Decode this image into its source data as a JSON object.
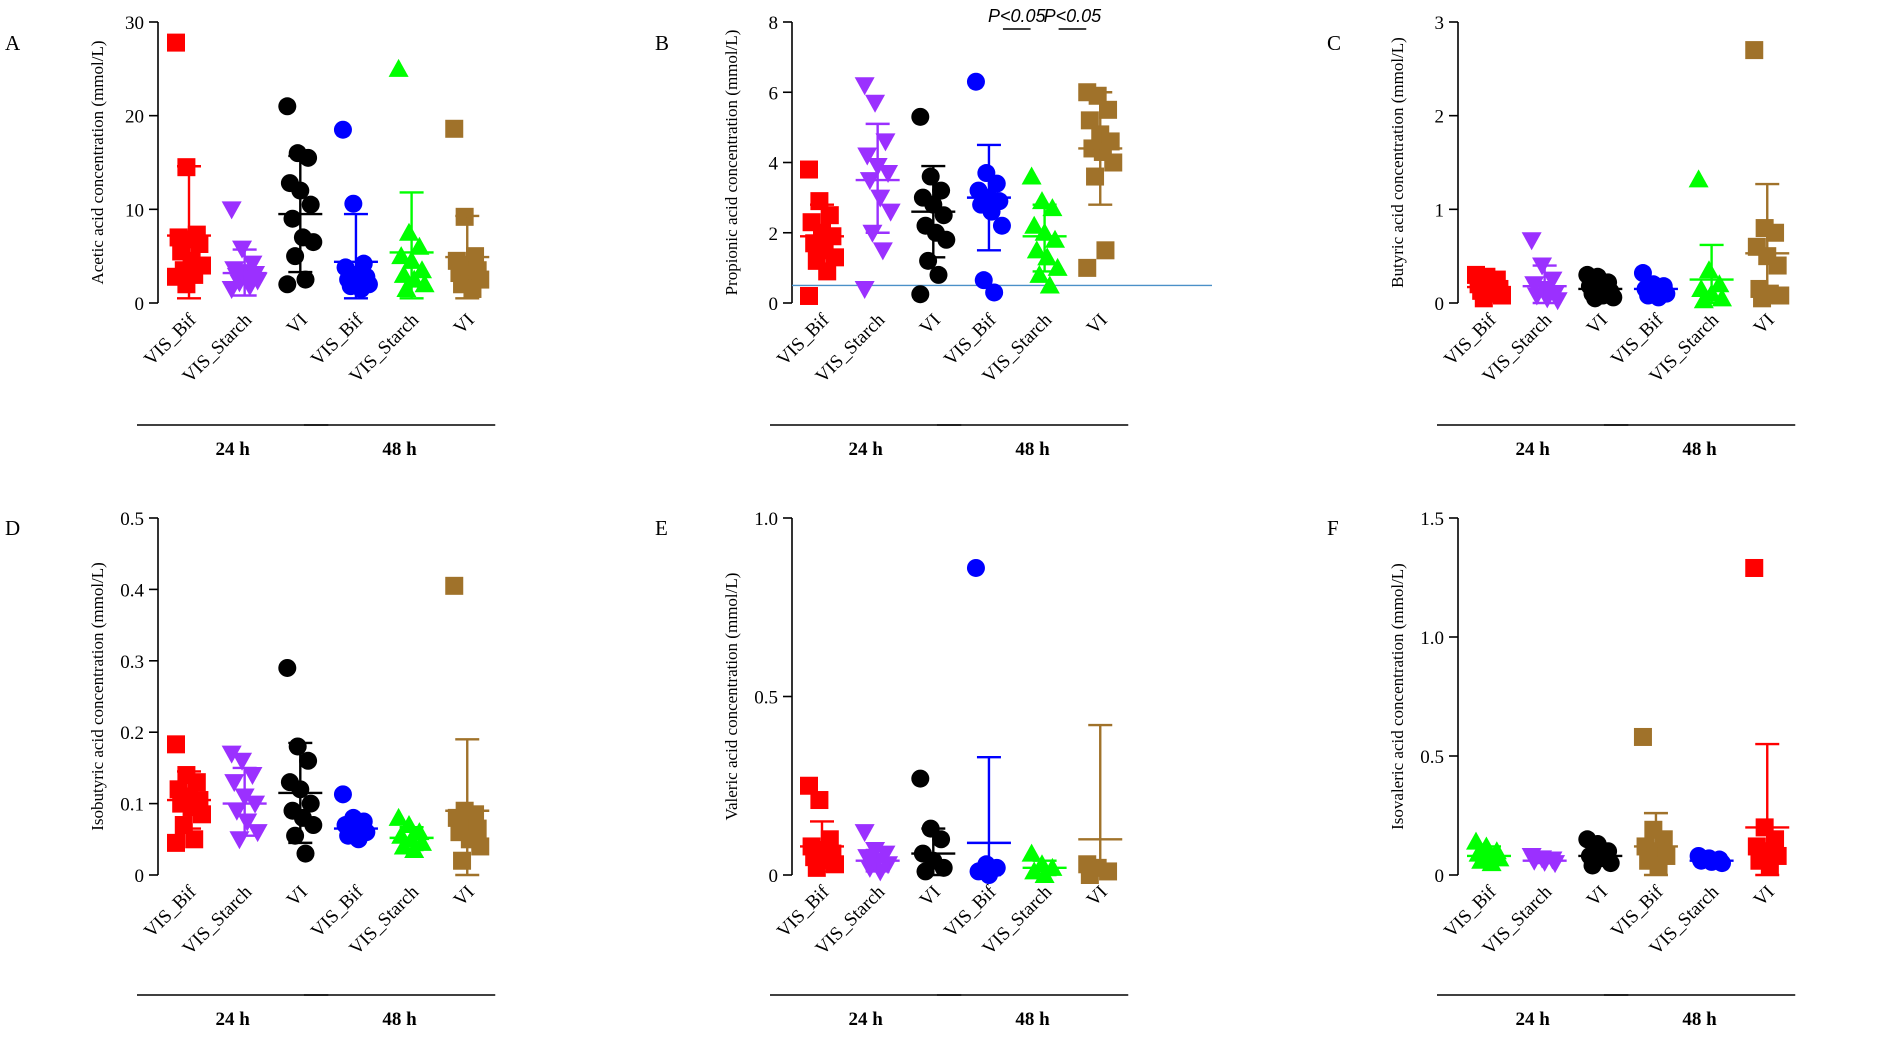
{
  "chart_data": [
    {
      "type": "scatter",
      "panel": "A",
      "ylabel": "Acetic  acid  concentration  (mmol/L)",
      "ylim": [
        0,
        30
      ],
      "yticks": [
        0,
        10,
        20,
        30
      ],
      "ytick_labels": [
        "0",
        "10",
        "20",
        "30"
      ],
      "categories": [
        "VIS_Bif",
        "VIS_Starch",
        "VI",
        "VIS_Bif",
        "VIS_Starch",
        "VI"
      ],
      "groups": [
        {
          "label": "24 h",
          "span": [
            0,
            2
          ]
        },
        {
          "label": "48 h",
          "span": [
            3,
            5
          ]
        }
      ],
      "series": [
        {
          "category": "VIS_Bif",
          "color": "#ff0000",
          "marker": "square",
          "mean": 7.2,
          "sd_low": 0.5,
          "sd_high": 14.6,
          "points": [
            27.8,
            14.5,
            7.3,
            7.0,
            6.8,
            6.3,
            5.5,
            4.5,
            4.0,
            3.5,
            3.0,
            2.8,
            2.0
          ]
        },
        {
          "category": "VIS_Starch",
          "color": "#9b30ff",
          "marker": "triangle-down",
          "mean": 3.2,
          "sd_low": 0.8,
          "sd_high": 5.7,
          "points": [
            10.0,
            5.8,
            4.2,
            3.6,
            3.3,
            3.1,
            2.9,
            2.6,
            2.4,
            2.2,
            1.8,
            1.5
          ]
        },
        {
          "category": "VI",
          "color": "#000000",
          "marker": "circle",
          "mean": 9.5,
          "sd_low": 3.3,
          "sd_high": 15.7,
          "points": [
            21.0,
            16.0,
            15.5,
            12.8,
            12.0,
            10.5,
            9.0,
            7.0,
            6.5,
            5.0,
            2.5,
            2.0
          ]
        },
        {
          "category": "VIS_Bif",
          "color": "#0000ff",
          "marker": "circle",
          "mean": 4.4,
          "sd_low": 0.5,
          "sd_high": 9.5,
          "points": [
            18.5,
            10.6,
            4.2,
            3.8,
            3.0,
            2.8,
            2.5,
            2.3,
            2.0,
            1.8,
            1.5
          ]
        },
        {
          "category": "VIS_Starch",
          "color": "#00ff00",
          "marker": "triangle-up",
          "mean": 5.4,
          "sd_low": 0.5,
          "sd_high": 11.8,
          "points": [
            25.0,
            7.5,
            6.0,
            5.0,
            4.5,
            3.5,
            3.0,
            2.5,
            2.0,
            1.5
          ]
        },
        {
          "category": "VI",
          "color": "#a0722a",
          "marker": "square",
          "mean": 4.9,
          "sd_low": 0.5,
          "sd_high": 9.3,
          "points": [
            18.6,
            9.2,
            5.0,
            4.5,
            4.0,
            3.5,
            3.2,
            3.0,
            2.5,
            2.0,
            1.5
          ]
        }
      ]
    },
    {
      "type": "scatter",
      "panel": "B",
      "ylabel": "Propionic acid concentration (mmol/L)",
      "ylim": [
        0,
        8
      ],
      "yticks": [
        0,
        2,
        4,
        6,
        8
      ],
      "ytick_labels": [
        "0",
        "2",
        "4",
        "6",
        "8"
      ],
      "reference_line": 0.5,
      "categories": [
        "VIS_Bif",
        "VIS_Starch",
        "VI",
        "VIS_Bif",
        "VIS_Starch",
        "VI"
      ],
      "groups": [
        {
          "label": "24 h",
          "span": [
            0,
            2
          ]
        },
        {
          "label": "48 h",
          "span": [
            3,
            5
          ]
        }
      ],
      "annotations": [
        {
          "label": "P<0.05",
          "from": 3,
          "to": 4
        },
        {
          "label": "P<0.05",
          "from": 4,
          "to": 5
        }
      ],
      "series": [
        {
          "category": "VIS_Bif",
          "color": "#ff0000",
          "marker": "square",
          "mean": 1.9,
          "sd_low": 1.0,
          "sd_high": 2.8,
          "points": [
            3.8,
            2.9,
            2.5,
            2.3,
            2.0,
            1.9,
            1.7,
            1.5,
            1.3,
            1.2,
            0.9,
            0.2
          ]
        },
        {
          "category": "VIS_Starch",
          "color": "#9b30ff",
          "marker": "triangle-down",
          "mean": 3.5,
          "sd_low": 2.0,
          "sd_high": 5.1,
          "points": [
            6.2,
            5.7,
            4.6,
            4.2,
            3.9,
            3.7,
            3.5,
            3.0,
            2.6,
            2.0,
            1.5,
            0.4
          ]
        },
        {
          "category": "VI",
          "color": "#000000",
          "marker": "circle",
          "mean": 2.6,
          "sd_low": 1.3,
          "sd_high": 3.9,
          "points": [
            5.3,
            3.6,
            3.2,
            3.0,
            2.8,
            2.5,
            2.2,
            2.0,
            1.8,
            1.2,
            0.8,
            0.25
          ]
        },
        {
          "category": "VIS_Bif",
          "color": "#0000ff",
          "marker": "circle",
          "mean": 3.0,
          "sd_low": 1.5,
          "sd_high": 4.5,
          "points": [
            6.3,
            3.7,
            3.4,
            3.2,
            3.0,
            2.9,
            2.8,
            2.6,
            2.2,
            0.65,
            0.3
          ]
        },
        {
          "category": "VIS_Starch",
          "color": "#00ff00",
          "marker": "triangle-up",
          "mean": 1.9,
          "sd_low": 0.9,
          "sd_high": 2.8,
          "points": [
            3.6,
            2.9,
            2.7,
            2.2,
            2.0,
            1.8,
            1.5,
            1.3,
            1.0,
            0.8,
            0.5
          ]
        },
        {
          "category": "VI",
          "color": "#a0722a",
          "marker": "square",
          "mean": 4.4,
          "sd_low": 2.8,
          "sd_high": 6.0,
          "points": [
            6.0,
            5.9,
            5.5,
            5.2,
            4.8,
            4.6,
            4.4,
            4.3,
            4.0,
            3.6,
            1.5,
            1.0
          ]
        }
      ]
    },
    {
      "type": "scatter",
      "panel": "C",
      "ylabel": "Butyric  acid concentration  (mmol/L)",
      "ylim": [
        0,
        3
      ],
      "yticks": [
        0,
        1,
        2,
        3
      ],
      "ytick_labels": [
        "0",
        "1",
        "2",
        "3"
      ],
      "categories": [
        "VIS_Bif",
        "VIS_Starch",
        "VI",
        "VIS_Bif",
        "VIS_Starch",
        "VI"
      ],
      "groups": [
        {
          "label": "24 h",
          "span": [
            0,
            2
          ]
        },
        {
          "label": "48 h",
          "span": [
            3,
            5
          ]
        }
      ],
      "series": [
        {
          "category": "VIS_Bif",
          "color": "#ff0000",
          "marker": "square",
          "mean": 0.17,
          "sd_low": 0.08,
          "sd_high": 0.26,
          "points": [
            0.3,
            0.28,
            0.25,
            0.2,
            0.18,
            0.15,
            0.13,
            0.1,
            0.08,
            0.05
          ]
        },
        {
          "category": "VIS_Starch",
          "color": "#9b30ff",
          "marker": "triangle-down",
          "mean": 0.18,
          "sd_low": 0.0,
          "sd_high": 0.4,
          "points": [
            0.67,
            0.4,
            0.25,
            0.2,
            0.15,
            0.1,
            0.08,
            0.05,
            0.03
          ]
        },
        {
          "category": "VI",
          "color": "#000000",
          "marker": "circle",
          "mean": 0.15,
          "sd_low": 0.05,
          "sd_high": 0.22,
          "points": [
            0.3,
            0.28,
            0.22,
            0.18,
            0.15,
            0.12,
            0.1,
            0.08,
            0.06,
            0.05
          ]
        },
        {
          "category": "VIS_Bif",
          "color": "#0000ff",
          "marker": "circle",
          "mean": 0.15,
          "sd_low": 0.05,
          "sd_high": 0.24,
          "points": [
            0.32,
            0.2,
            0.18,
            0.15,
            0.12,
            0.1,
            0.08,
            0.06
          ]
        },
        {
          "category": "VIS_Starch",
          "color": "#00ff00",
          "marker": "triangle-up",
          "mean": 0.25,
          "sd_low": 0.0,
          "sd_high": 0.62,
          "points": [
            1.32,
            0.35,
            0.2,
            0.15,
            0.1,
            0.05,
            0.03
          ]
        },
        {
          "category": "VI",
          "color": "#a0722a",
          "marker": "square",
          "mean": 0.53,
          "sd_low": 0.0,
          "sd_high": 1.27,
          "points": [
            2.7,
            0.8,
            0.75,
            0.6,
            0.5,
            0.4,
            0.15,
            0.1,
            0.08,
            0.05
          ]
        }
      ]
    },
    {
      "type": "scatter",
      "panel": "D",
      "ylabel": "Isobutyric acid concentration  (mmol/L)",
      "ylim": [
        0,
        0.5
      ],
      "yticks": [
        0,
        0.1,
        0.2,
        0.3,
        0.4,
        0.5
      ],
      "ytick_labels": [
        "0",
        "0.1",
        "0.2",
        "0.3",
        "0.4",
        "0.5"
      ],
      "categories": [
        "VIS_Bif",
        "VIS_Starch",
        "VI",
        "VIS_Bif",
        "VIS_Starch",
        "VI"
      ],
      "groups": [
        {
          "label": "24 h",
          "span": [
            0,
            2
          ]
        },
        {
          "label": "48 h",
          "span": [
            3,
            5
          ]
        }
      ],
      "series": [
        {
          "category": "VIS_Bif",
          "color": "#ff0000",
          "marker": "square",
          "mean": 0.105,
          "sd_low": 0.065,
          "sd_high": 0.145,
          "points": [
            0.183,
            0.14,
            0.13,
            0.12,
            0.11,
            0.105,
            0.1,
            0.095,
            0.085,
            0.07,
            0.05,
            0.045
          ]
        },
        {
          "category": "VIS_Starch",
          "color": "#9b30ff",
          "marker": "triangle-down",
          "mean": 0.1,
          "sd_low": 0.055,
          "sd_high": 0.15,
          "points": [
            0.17,
            0.16,
            0.14,
            0.13,
            0.11,
            0.1,
            0.09,
            0.075,
            0.06,
            0.05
          ]
        },
        {
          "category": "VI",
          "color": "#000000",
          "marker": "circle",
          "mean": 0.115,
          "sd_low": 0.045,
          "sd_high": 0.185,
          "points": [
            0.29,
            0.18,
            0.16,
            0.13,
            0.12,
            0.1,
            0.09,
            0.08,
            0.07,
            0.055,
            0.03
          ]
        },
        {
          "category": "VIS_Bif",
          "color": "#0000ff",
          "marker": "circle",
          "mean": 0.065,
          "sd_low": 0.05,
          "sd_high": 0.08,
          "points": [
            0.113,
            0.08,
            0.075,
            0.07,
            0.065,
            0.06,
            0.055,
            0.05
          ]
        },
        {
          "category": "VIS_Starch",
          "color": "#00ff00",
          "marker": "triangle-up",
          "mean": 0.052,
          "sd_low": 0.035,
          "sd_high": 0.067,
          "points": [
            0.08,
            0.07,
            0.06,
            0.055,
            0.05,
            0.045,
            0.04,
            0.035
          ]
        },
        {
          "category": "VI",
          "color": "#a0722a",
          "marker": "square",
          "mean": 0.09,
          "sd_low": 0.0,
          "sd_high": 0.19,
          "points": [
            0.405,
            0.09,
            0.085,
            0.08,
            0.07,
            0.065,
            0.06,
            0.05,
            0.04,
            0.02
          ]
        }
      ]
    },
    {
      "type": "scatter",
      "panel": "E",
      "ylabel": "Valeric  acid concentration  (mmol/L)",
      "ylim": [
        0,
        1.0
      ],
      "yticks": [
        0,
        0.5,
        1.0
      ],
      "ytick_labels": [
        "0",
        "0.5",
        "1.0"
      ],
      "categories": [
        "VIS_Bif",
        "VIS_Starch",
        "VI",
        "VIS_Bif",
        "VIS_Starch",
        "VI"
      ],
      "groups": [
        {
          "label": "24 h",
          "span": [
            0,
            2
          ]
        },
        {
          "label": "48 h",
          "span": [
            3,
            5
          ]
        }
      ],
      "series": [
        {
          "category": "VIS_Bif",
          "color": "#ff0000",
          "marker": "square",
          "mean": 0.08,
          "sd_low": 0.01,
          "sd_high": 0.15,
          "points": [
            0.25,
            0.21,
            0.1,
            0.08,
            0.07,
            0.06,
            0.05,
            0.04,
            0.03,
            0.02
          ]
        },
        {
          "category": "VIS_Starch",
          "color": "#9b30ff",
          "marker": "triangle-down",
          "mean": 0.04,
          "sd_low": 0.01,
          "sd_high": 0.07,
          "points": [
            0.12,
            0.07,
            0.06,
            0.05,
            0.04,
            0.03,
            0.02,
            0.01
          ]
        },
        {
          "category": "VI",
          "color": "#000000",
          "marker": "circle",
          "mean": 0.06,
          "sd_low": 0.0,
          "sd_high": 0.13,
          "points": [
            0.27,
            0.13,
            0.1,
            0.06,
            0.04,
            0.02,
            0.01
          ]
        },
        {
          "category": "VIS_Bif",
          "color": "#0000ff",
          "marker": "circle",
          "mean": 0.09,
          "sd_low": 0.0,
          "sd_high": 0.33,
          "points": [
            0.86,
            0.03,
            0.02,
            0.01,
            0.0
          ]
        },
        {
          "category": "VIS_Starch",
          "color": "#00ff00",
          "marker": "triangle-up",
          "mean": 0.02,
          "sd_low": 0.0,
          "sd_high": 0.04,
          "points": [
            0.06,
            0.03,
            0.02,
            0.01,
            0.0
          ]
        },
        {
          "category": "VI",
          "color": "#a0722a",
          "marker": "square",
          "mean": 0.1,
          "sd_low": 0.0,
          "sd_high": 0.42,
          "points": [
            0.03,
            0.02,
            0.01,
            0.0
          ]
        }
      ]
    },
    {
      "type": "scatter",
      "panel": "F",
      "ylabel": "Isovaleric acid concentration  (mmol/L)",
      "ylim": [
        0,
        1.5
      ],
      "yticks": [
        0,
        0.5,
        1.0,
        1.5
      ],
      "ytick_labels": [
        "0",
        "0.5",
        "1.0",
        "1.5"
      ],
      "categories": [
        "VIS_Bif",
        "VIS_Starch",
        "VI",
        "VIS_Bif",
        "VIS_Starch",
        "VI"
      ],
      "groups": [
        {
          "label": "24 h",
          "span": [
            0,
            2
          ]
        },
        {
          "label": "48 h",
          "span": [
            3,
            5
          ]
        }
      ],
      "series": [
        {
          "category": "VIS_Bif",
          "color": "#00ff00",
          "marker": "triangle-up",
          "mean": 0.08,
          "sd_low": 0.05,
          "sd_high": 0.12,
          "points": [
            0.14,
            0.12,
            0.1,
            0.09,
            0.08,
            0.07,
            0.06,
            0.05
          ]
        },
        {
          "category": "VIS_Starch",
          "color": "#9b30ff",
          "marker": "triangle-down",
          "mean": 0.06,
          "sd_low": 0.05,
          "sd_high": 0.07,
          "points": [
            0.08,
            0.07,
            0.065,
            0.06,
            0.055,
            0.05
          ]
        },
        {
          "category": "VI",
          "color": "#000000",
          "marker": "circle",
          "mean": 0.08,
          "sd_low": 0.04,
          "sd_high": 0.12,
          "points": [
            0.15,
            0.13,
            0.1,
            0.08,
            0.07,
            0.05,
            0.04
          ]
        },
        {
          "category": "VIS_Bif",
          "color": "#a0722a",
          "marker": "square",
          "mean": 0.12,
          "sd_low": 0.0,
          "sd_high": 0.26,
          "points": [
            0.58,
            0.19,
            0.15,
            0.12,
            0.1,
            0.08,
            0.06,
            0.04
          ]
        },
        {
          "category": "VIS_Starch",
          "color": "#0000ff",
          "marker": "circle",
          "mean": 0.06,
          "sd_low": 0.05,
          "sd_high": 0.07,
          "points": [
            0.08,
            0.07,
            0.065,
            0.06,
            0.055,
            0.05
          ]
        },
        {
          "category": "VI",
          "color": "#ff0000",
          "marker": "square",
          "mean": 0.2,
          "sd_low": 0.0,
          "sd_high": 0.55,
          "points": [
            1.29,
            0.2,
            0.15,
            0.12,
            0.1,
            0.08,
            0.06,
            0.04
          ]
        }
      ]
    }
  ]
}
